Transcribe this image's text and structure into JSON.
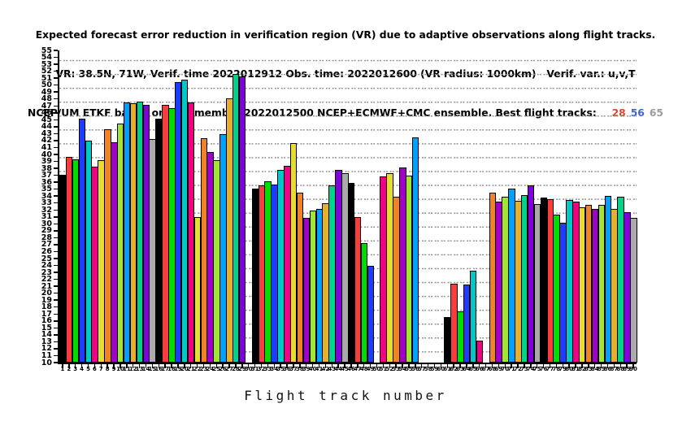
{
  "title_lines": {
    "line1": "Expected forecast error reduction in verification region (VR) due to adaptive observations along flight tracks.",
    "line2": "VR: 38.5N, 71W, Verif. time 2022012912 Obs. time: 2022012600 (VR radius: 1000km)   Verif. var.: u,v,T",
    "line3_prefix": "NCEP/UM ETKF based on 177-member 2022012500 NCEP+ECMWF+CMC ensemble. Best flight tracks:   ",
    "best_tracks": [
      {
        "label": "28",
        "color": "#e8402c"
      },
      {
        "label": "56",
        "color": "#3c64e0"
      },
      {
        "label": "65",
        "color": "#9b9b9b"
      }
    ]
  },
  "chart_data": {
    "type": "bar",
    "title": "Expected forecast error reduction in verification region (VR) due to adaptive observations along flight tracks.",
    "xlabel": "Flight track number",
    "ylabel": "",
    "ylim": [
      10,
      55
    ],
    "y_ticks": {
      "min": 10,
      "max": 55,
      "step": 1
    },
    "x_ticks": {
      "min": 1,
      "max": 90,
      "step": 1
    },
    "grid": "dotted horizontal rows every 2 units",
    "legend_note": "bar colors cycle through 15-color palette by ((track-1) mod 15)",
    "missing_tracks": [
      30,
      50,
      57,
      58,
      59,
      60,
      67
    ],
    "categories_note": "flight tracks 1 through 90",
    "values": [
      37.1,
      39.7,
      39.3,
      45.2,
      42.0,
      38.3,
      39.2,
      43.6,
      41.8,
      44.5,
      47.5,
      47.4,
      47.6,
      47.1,
      42.2,
      45.1,
      47.2,
      46.7,
      50.4,
      50.8,
      47.5,
      31.0,
      42.4,
      40.3,
      39.2,
      42.9,
      48.1,
      51.6,
      51.2,
      null,
      35.1,
      35.6,
      36.1,
      35.7,
      37.8,
      38.4,
      41.6,
      34.5,
      30.9,
      31.9,
      32.1,
      33.0,
      35.6,
      37.8,
      37.3,
      35.9,
      31.0,
      27.2,
      24.0,
      null,
      36.8,
      37.3,
      33.9,
      38.1,
      36.9,
      42.5,
      null,
      null,
      null,
      null,
      16.6,
      21.4,
      17.4,
      21.2,
      23.3,
      13.2,
      null,
      34.5,
      33.2,
      33.9,
      35.1,
      33.3,
      34.2,
      35.5,
      32.9,
      33.8,
      33.6,
      31.3,
      30.1,
      33.4,
      33.2,
      32.4,
      32.7,
      32.2,
      32.7,
      34.0,
      32.2,
      33.9,
      31.7,
      30.9
    ],
    "palette": [
      "#000000",
      "#fa3c3c",
      "#00dc00",
      "#1e3cff",
      "#00c8c8",
      "#f00082",
      "#e6dc32",
      "#f08228",
      "#a000c8",
      "#a0e632",
      "#00a0ff",
      "#e6af2d",
      "#00d28c",
      "#8200dc",
      "#aaaaaa"
    ]
  }
}
